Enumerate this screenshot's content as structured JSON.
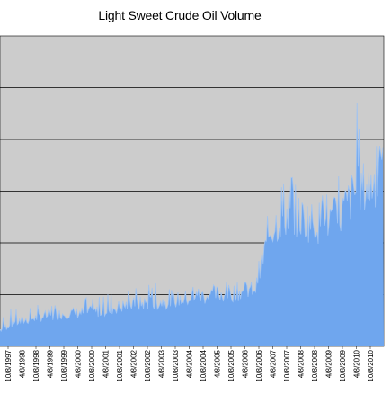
{
  "chart_data": {
    "type": "area",
    "title": "Light Sweet Crude Oil Volume",
    "xlabel": "",
    "ylabel": "",
    "grid": true,
    "legend": "none",
    "x_range": [
      "1997-10-08",
      "2011-04-08"
    ],
    "y_gridlines": 6,
    "colors": {
      "plot_background": "#cccccc",
      "area_fill": "#6fa6ee",
      "area_highlight": "#9fc3f2",
      "gridline": "#000000"
    },
    "tick_labels": [
      "10/8/1997",
      "4/8/1998",
      "10/8/1998",
      "4/8/1999",
      "10/8/1999",
      "4/8/2000",
      "10/8/2000",
      "4/8/2001",
      "10/8/2001",
      "4/8/2002",
      "10/8/2002",
      "4/8/2003",
      "10/8/2003",
      "4/8/2004",
      "10/8/2004",
      "4/8/2005",
      "10/8/2005",
      "4/8/2006",
      "10/8/2006",
      "4/8/2007",
      "10/8/2007",
      "4/8/2008",
      "10/8/2008",
      "4/8/2009",
      "10/8/2009",
      "4/8/2010",
      "10/8/2010"
    ],
    "series": [
      {
        "x": [
          "1997-10-08",
          "1998-04-08",
          "1998-10-08",
          "1999-04-08",
          "1999-10-08",
          "2000-04-08",
          "2000-10-08",
          "2001-04-08",
          "2001-10-08",
          "2002-04-08",
          "2002-10-08",
          "2003-04-08",
          "2003-10-08",
          "2004-04-08",
          "2004-10-08",
          "2005-04-08",
          "2005-10-08",
          "2006-04-08",
          "2006-10-08",
          "2007-04-08",
          "2007-10-08",
          "2008-04-08",
          "2008-10-08",
          "2009-04-08",
          "2009-10-08",
          "2010-04-08",
          "2010-10-08",
          "2011-04-08"
        ],
        "values": [
          0.33,
          0.45,
          0.52,
          0.58,
          0.62,
          0.64,
          0.66,
          0.68,
          0.74,
          0.8,
          0.83,
          0.85,
          0.88,
          0.92,
          0.96,
          1.0,
          1.02,
          1.06,
          1.15,
          2.25,
          2.55,
          2.5,
          2.4,
          2.4,
          2.55,
          3.0,
          3.1,
          3.4
        ],
        "peaks": [
          0.55,
          0.78,
          0.82,
          0.8,
          0.88,
          0.92,
          0.95,
          1.0,
          1.1,
          1.15,
          1.2,
          1.25,
          1.1,
          1.15,
          1.2,
          1.2,
          1.3,
          1.3,
          1.3,
          3.1,
          3.3,
          3.4,
          3.25,
          3.2,
          3.5,
          5.0,
          4.2,
          3.9
        ]
      }
    ]
  }
}
